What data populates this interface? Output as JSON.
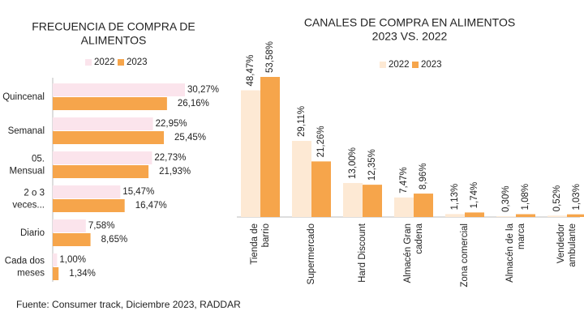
{
  "chart_data": [
    {
      "type": "bar",
      "orientation": "horizontal",
      "title": "FRECUENCIA DE COMPRA DE\nALIMENTOS",
      "categories": [
        "Quincenal",
        "Semanal",
        "05.\nMensual",
        "2 o 3\nveces...",
        "Diario",
        "Cada dos\nmeses"
      ],
      "series": [
        {
          "name": "2022",
          "color": "#fbe4ec",
          "values": [
            30.27,
            22.95,
            22.73,
            15.47,
            7.58,
            1.0
          ],
          "value_labels": [
            "30,27%",
            "22,95%",
            "22,73%",
            "15,47%",
            "7,58%",
            "1,00%"
          ]
        },
        {
          "name": "2023",
          "color": "#f6a54b",
          "values": [
            26.16,
            25.45,
            21.93,
            16.47,
            8.65,
            1.34
          ],
          "value_labels": [
            "26,16%",
            "25,45%",
            "21,93%",
            "16,47%",
            "8,65%",
            "1,34%"
          ]
        }
      ]
    },
    {
      "type": "bar",
      "orientation": "vertical",
      "title": "CANALES DE COMPRA EN ALIMENTOS\n2023 VS. 2022",
      "categories": [
        "Tienda de\nbarrio",
        "Supermercado",
        "Hard Discount",
        "Almacén Gran\ncadena",
        "Zona comercial",
        "Almacén de la\nmarca",
        "Vendedor\nambulante"
      ],
      "series": [
        {
          "name": "2022",
          "color": "#fde9d4",
          "values": [
            48.47,
            29.11,
            13.0,
            7.47,
            1.13,
            0.3,
            0.52
          ],
          "value_labels": [
            "48,47%",
            "29,11%",
            "13,00%",
            "7,47%",
            "1,13%",
            "0,30%",
            "0,52%"
          ]
        },
        {
          "name": "2023",
          "color": "#f6a54b",
          "values": [
            53.58,
            21.26,
            12.35,
            8.96,
            1.74,
            1.08,
            1.03
          ],
          "value_labels": [
            "53,58%",
            "21,26%",
            "12,35%",
            "8,96%",
            "1,74%",
            "1,08%",
            "1,03%"
          ]
        }
      ]
    }
  ],
  "source": "Fuente: Consumer track,  Diciembre 2023, RADDAR"
}
